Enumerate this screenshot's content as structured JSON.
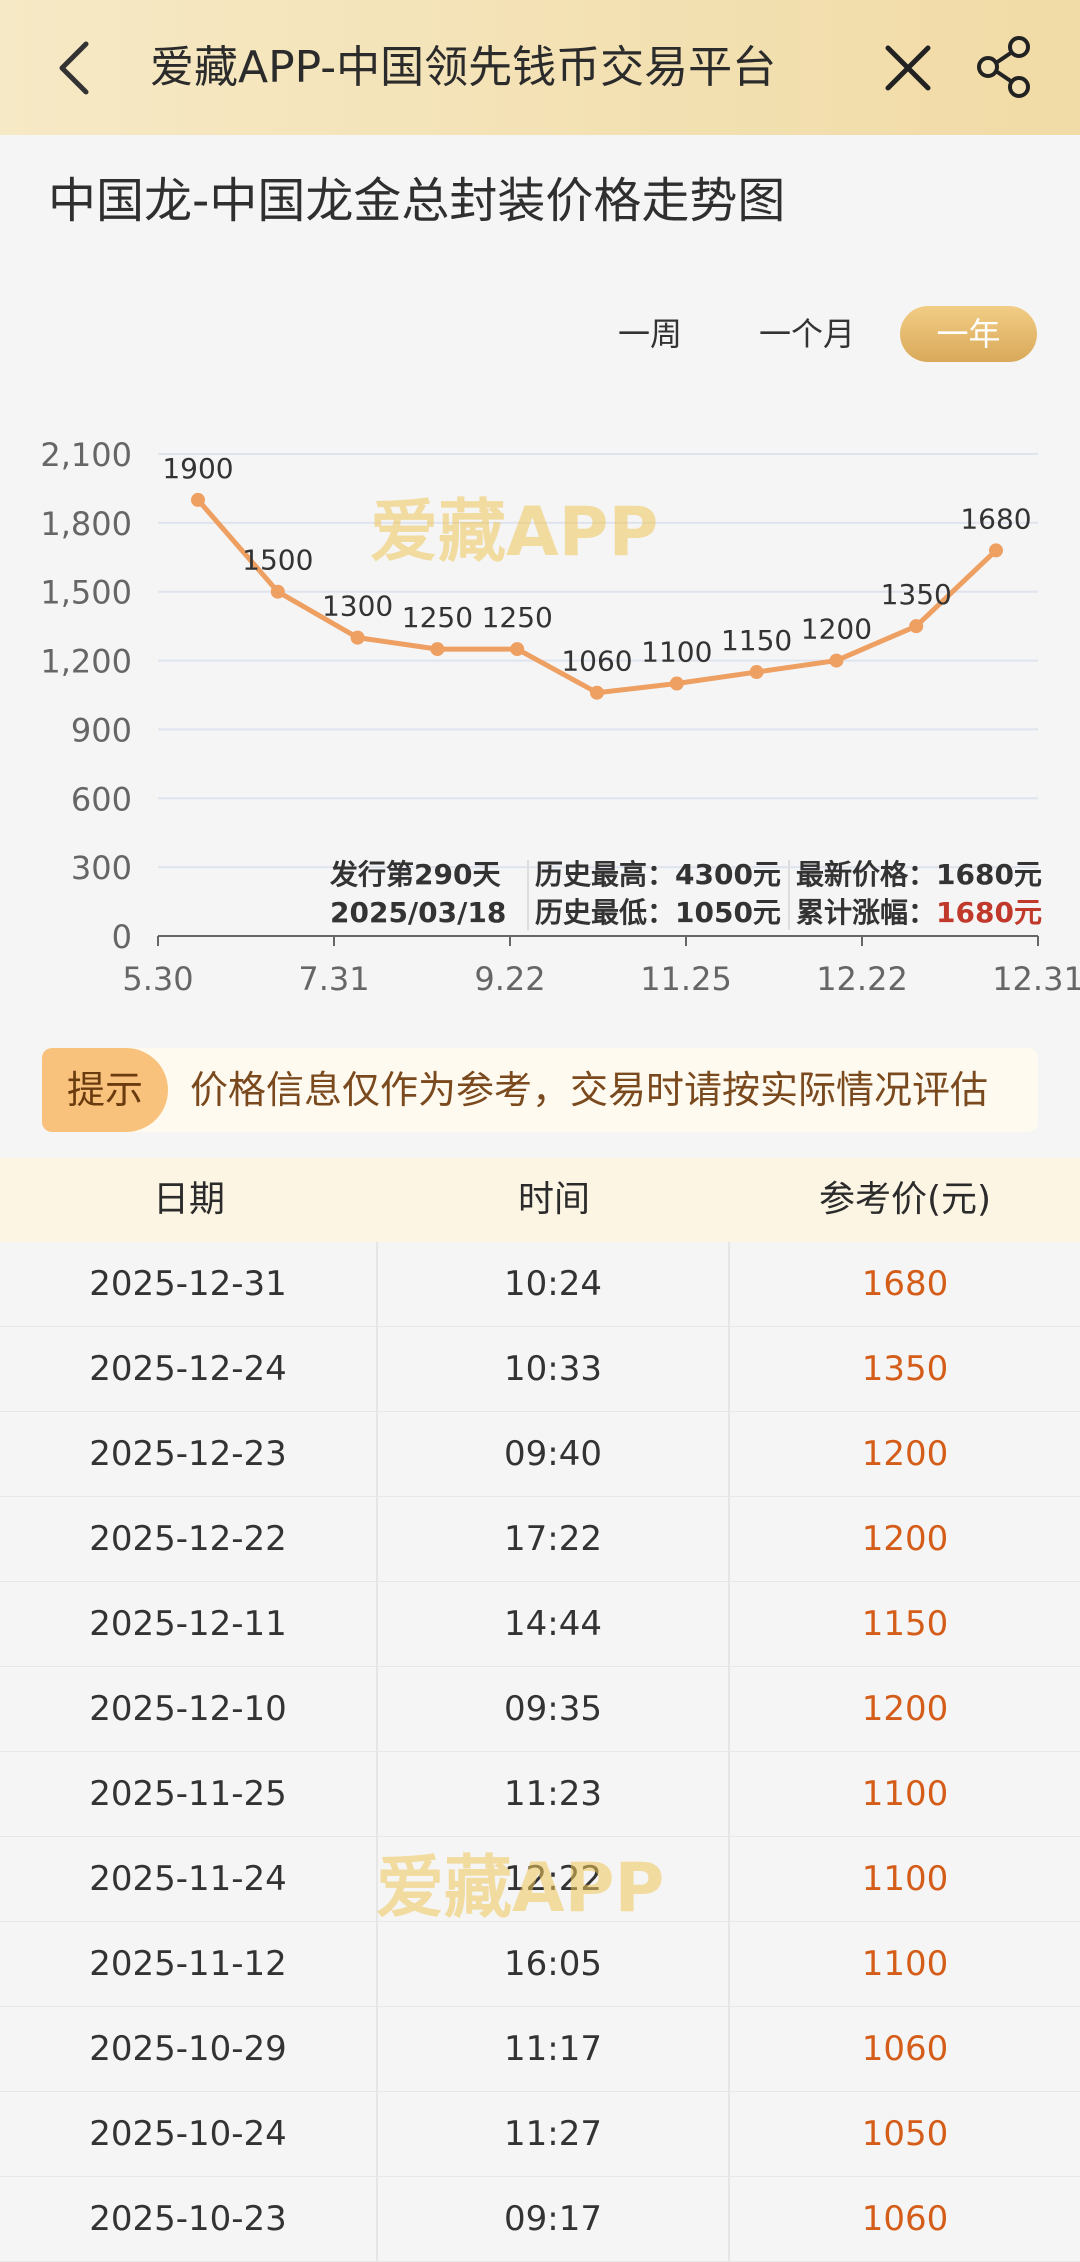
{
  "header": {
    "title": "爱藏APP-中国领先钱币交易平台"
  },
  "page": {
    "title": "中国龙-中国龙金总封装价格走势图"
  },
  "range_tabs": [
    {
      "label": "一周",
      "selected": false
    },
    {
      "label": "一个月",
      "selected": false
    },
    {
      "label": "一年",
      "selected": true
    }
  ],
  "chart_data": {
    "type": "line",
    "x_ticks": [
      "5.30",
      "7.31",
      "9.22",
      "11.25",
      "12.22",
      "12.31"
    ],
    "y_ticks": [
      "0",
      "300",
      "600",
      "900",
      "1,200",
      "1,500",
      "1,800",
      "2,100"
    ],
    "ylim": [
      0,
      2100
    ],
    "series": [
      {
        "values": [
          1900,
          1500,
          1300,
          1250,
          1250,
          1060,
          1100,
          1150,
          1200,
          1350,
          1680
        ],
        "color": "#ee9f62"
      }
    ],
    "grid": true
  },
  "stats": {
    "issue_day": "发行第290天",
    "issue_date": "2025/03/18",
    "hist_high": "历史最高：4300元",
    "hist_low": "历史最低：1050元",
    "latest_price": "最新价格：1680元",
    "cum_change_label": "累计涨幅：",
    "cum_change_value": "1680元"
  },
  "notice": {
    "tag": "提示",
    "text": "价格信息仅作为参考，交易时请按实际情况评估"
  },
  "table": {
    "headers": {
      "date": "日期",
      "time": "时间",
      "price": "参考价(元)"
    },
    "rows": [
      {
        "date": "2025-12-31",
        "time": "10:24",
        "price": "1680"
      },
      {
        "date": "2025-12-24",
        "time": "10:33",
        "price": "1350"
      },
      {
        "date": "2025-12-23",
        "time": "09:40",
        "price": "1200"
      },
      {
        "date": "2025-12-22",
        "time": "17:22",
        "price": "1200"
      },
      {
        "date": "2025-12-11",
        "time": "14:44",
        "price": "1150"
      },
      {
        "date": "2025-12-10",
        "time": "09:35",
        "price": "1200"
      },
      {
        "date": "2025-11-25",
        "time": "11:23",
        "price": "1100"
      },
      {
        "date": "2025-11-24",
        "time": "12:22",
        "price": "1100"
      },
      {
        "date": "2025-11-12",
        "time": "16:05",
        "price": "1100"
      },
      {
        "date": "2025-10-29",
        "time": "11:17",
        "price": "1060"
      },
      {
        "date": "2025-10-24",
        "time": "11:27",
        "price": "1050"
      },
      {
        "date": "2025-10-23",
        "time": "09:17",
        "price": "1060"
      }
    ]
  },
  "watermark": "爱藏APP",
  "colors": {
    "accent": "#d9a95a",
    "price": "#d45d19",
    "line": "#ee9f62"
  }
}
